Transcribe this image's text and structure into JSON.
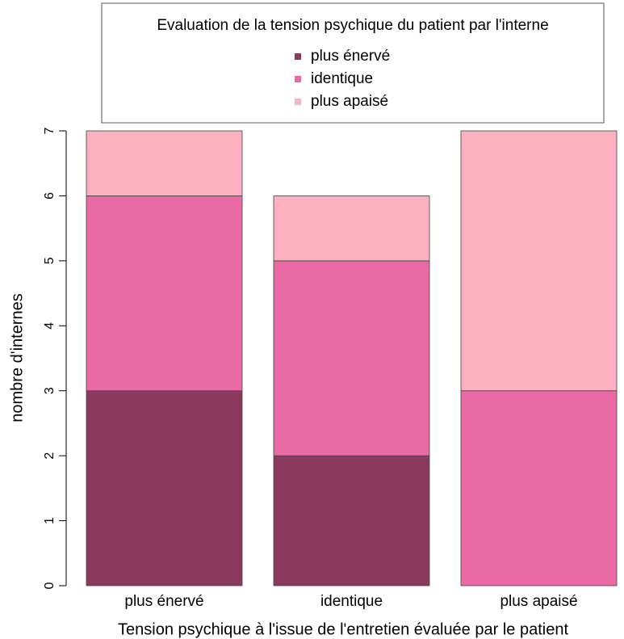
{
  "chart_data": {
    "type": "stacked_bar",
    "legend_title": "Evaluation de la tension psychique du patient par l'interne",
    "x_label": "Tension psychique à l'issue de l'entretien évaluée par le patient",
    "y_label": "nombre d'internes",
    "categories": [
      "plus énervé",
      "identique",
      "plus apaisé"
    ],
    "series": [
      {
        "name": "plus énervé",
        "color": "#8b3a5e",
        "values": [
          3,
          2,
          0
        ]
      },
      {
        "name": "identique",
        "color": "#e96aa5",
        "values": [
          3,
          3,
          3
        ]
      },
      {
        "name": "plus apaisé",
        "color": "#fbb1bf",
        "values": [
          1,
          1,
          4
        ]
      }
    ],
    "ylim": [
      0,
      7
    ],
    "yticks": [
      0,
      1,
      2,
      3,
      4,
      5,
      6,
      7
    ],
    "legend": "top"
  }
}
